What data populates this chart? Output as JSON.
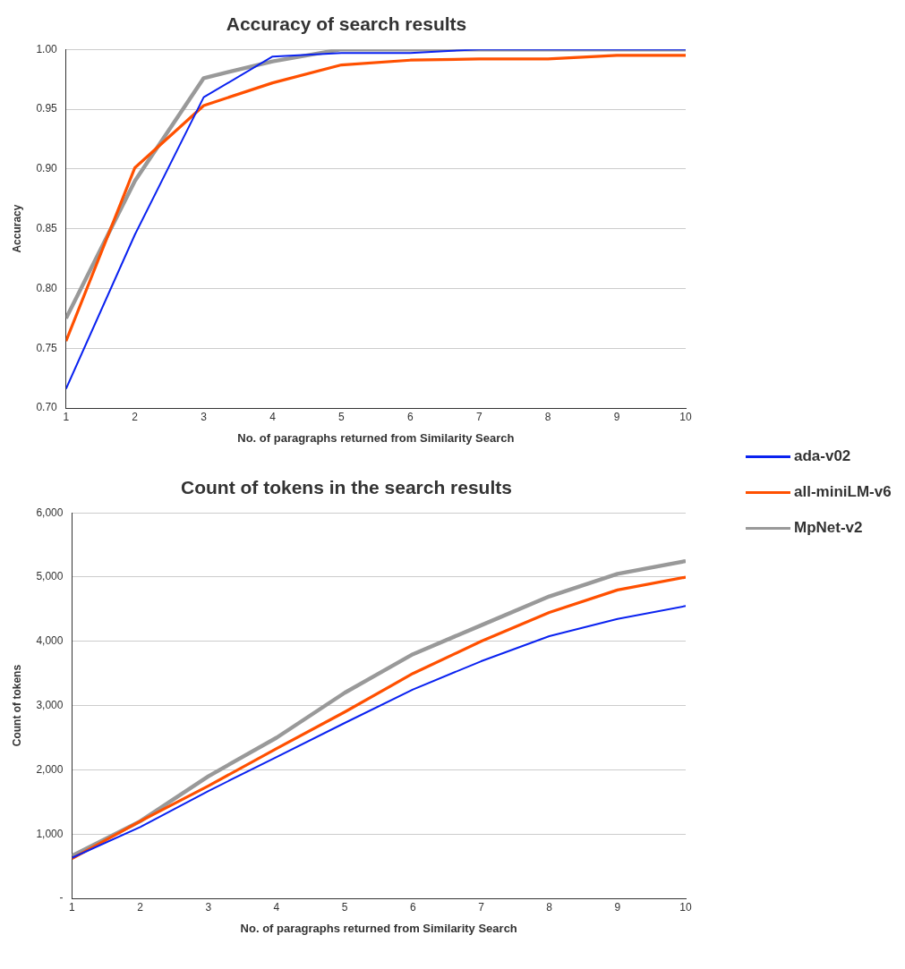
{
  "chart_data": [
    {
      "type": "line",
      "title": "Accuracy of search results",
      "xlabel": "No. of paragraphs returned from Similarity Search",
      "ylabel": "Accuracy",
      "x": [
        1,
        2,
        3,
        4,
        5,
        6,
        7,
        8,
        9,
        10
      ],
      "xlim": [
        1,
        10
      ],
      "xticks": [
        1,
        2,
        3,
        4,
        5,
        6,
        7,
        8,
        9,
        10
      ],
      "ylim": [
        0.7,
        1.0
      ],
      "yticks": [
        {
          "value": 0.7,
          "label": "0.70"
        },
        {
          "value": 0.75,
          "label": "0.75"
        },
        {
          "value": 0.8,
          "label": "0.80"
        },
        {
          "value": 0.85,
          "label": "0.85"
        },
        {
          "value": 0.9,
          "label": "0.90"
        },
        {
          "value": 0.95,
          "label": "0.95"
        },
        {
          "value": 1.0,
          "label": "1.00"
        }
      ],
      "grid": "y",
      "legend": "right",
      "marker": "none",
      "series": [
        {
          "name": "ada-v02",
          "color": "#0a22f0",
          "values": [
            0.716,
            0.845,
            0.96,
            0.994,
            0.997,
            0.997,
            1.0,
            1.0,
            1.0,
            1.0
          ]
        },
        {
          "name": "all-miniLM-v6",
          "color": "#ff5000",
          "values": [
            0.756,
            0.901,
            0.953,
            0.972,
            0.987,
            0.991,
            0.992,
            0.992,
            0.995,
            0.995
          ]
        },
        {
          "name": "MpNet-v2",
          "color": "#999999",
          "values": [
            0.775,
            0.89,
            0.976,
            0.99,
            1.0,
            1.0,
            1.0,
            1.0,
            1.0,
            1.0
          ]
        }
      ]
    },
    {
      "type": "line",
      "title": "Count of tokens in the search results",
      "xlabel": "No. of paragraphs returned from Similarity Search",
      "ylabel": "Count of tokens",
      "x": [
        1,
        2,
        3,
        4,
        5,
        6,
        7,
        8,
        9,
        10
      ],
      "xlim": [
        1,
        10
      ],
      "xticks": [
        1,
        2,
        3,
        4,
        5,
        6,
        7,
        8,
        9,
        10
      ],
      "ylim": [
        0,
        6000
      ],
      "yticks": [
        {
          "value": 0,
          "label": "-"
        },
        {
          "value": 1000,
          "label": "1,000"
        },
        {
          "value": 2000,
          "label": "2,000"
        },
        {
          "value": 3000,
          "label": "3,000"
        },
        {
          "value": 4000,
          "label": "4,000"
        },
        {
          "value": 5000,
          "label": "5,000"
        },
        {
          "value": 6000,
          "label": "6,000"
        }
      ],
      "grid": "y",
      "marker": "none",
      "series": [
        {
          "color": "#0a22f0",
          "values": [
            630,
            1110,
            1670,
            2200,
            2730,
            3250,
            3690,
            4080,
            4350,
            4550
          ]
        },
        {
          "color": "#ff5000",
          "values": [
            620,
            1200,
            1750,
            2330,
            2900,
            3500,
            4000,
            4450,
            4800,
            5000
          ]
        },
        {
          "color": "#999999",
          "values": [
            660,
            1200,
            1900,
            2500,
            3200,
            3800,
            4250,
            4700,
            5050,
            5250
          ]
        }
      ]
    }
  ]
}
